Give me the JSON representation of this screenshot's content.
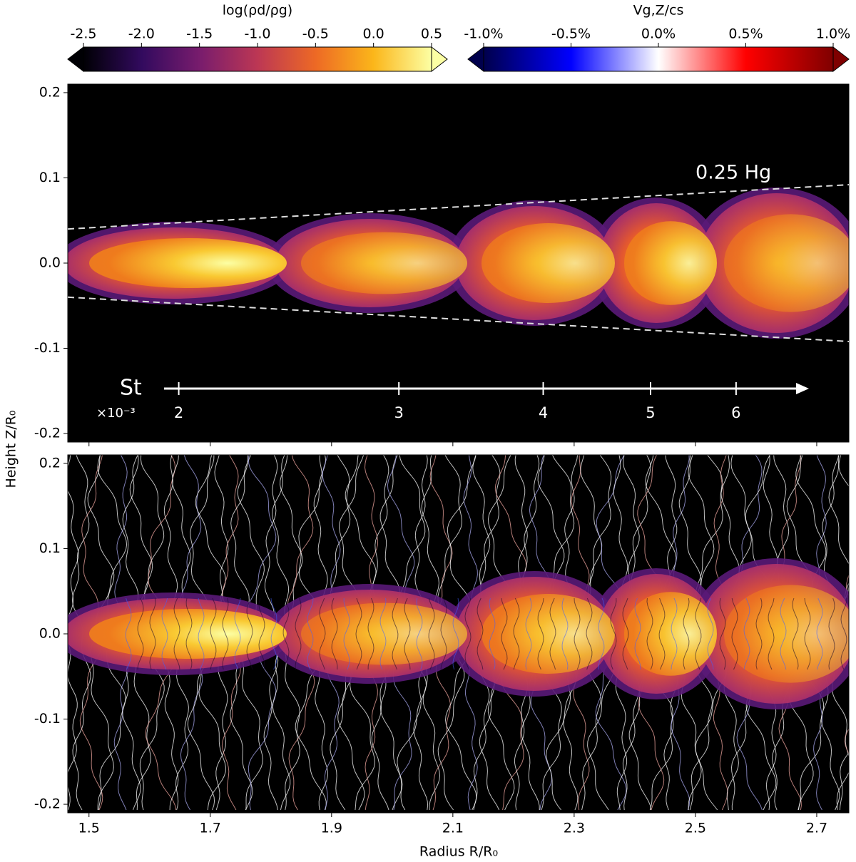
{
  "chart_data": {
    "type": "image",
    "xlabel": "Radius R/R₀",
    "ylabel": "Height Z/R₀",
    "xlim": [
      1.465,
      2.753
    ],
    "xticks": [
      1.5,
      1.7,
      1.9,
      2.1,
      2.3,
      2.5,
      2.7
    ],
    "ylim": [
      -0.21,
      0.21
    ],
    "yticks": [
      -0.2,
      -0.1,
      {
        "value": 0,
        "label": "0.0"
      },
      0.1,
      0.2
    ],
    "colorbars": [
      {
        "label": "log(ρd/ρg)",
        "lim": [
          -2.5,
          0.5
        ],
        "ticks": [
          -2.5,
          {
            "value": -2,
            "label": "-2.0"
          },
          -1.5,
          {
            "value": -1,
            "label": "-1.0"
          },
          -0.5,
          {
            "value": 0,
            "label": "0.0"
          },
          0.5
        ],
        "colors": [
          "#000004",
          "#320a5e",
          "#781c6d",
          "#bc3754",
          "#ed6925",
          "#fbb61a",
          "#fcffa4"
        ]
      },
      {
        "label": "Vg,Z/cs",
        "lim": [
          -1,
          1
        ],
        "ticks": [
          {
            "value": -1,
            "label": "-1.0%"
          },
          {
            "value": -0.5,
            "label": "-0.5%"
          },
          {
            "value": 0,
            "label": "0.0%"
          },
          {
            "value": 0.5,
            "label": "0.5%"
          },
          {
            "value": 1,
            "label": "1.0%"
          }
        ],
        "colors": [
          "#00004c",
          "#0000ff",
          "#ffffff",
          "#ff0000",
          "#7f0000"
        ]
      }
    ],
    "scale_height": {
      "label": "0.25 Hg",
      "r": [
        1.465,
        2.753
      ],
      "z_upper": [
        0.04,
        0.092
      ],
      "z_lower": [
        -0.04,
        -0.092
      ]
    },
    "stokes": {
      "label": "St",
      "multiplier": "×10⁻³",
      "values": [
        2,
        3,
        4,
        5,
        6
      ],
      "r": [
        1.648,
        2.011,
        2.249,
        2.426,
        2.567
      ]
    }
  }
}
